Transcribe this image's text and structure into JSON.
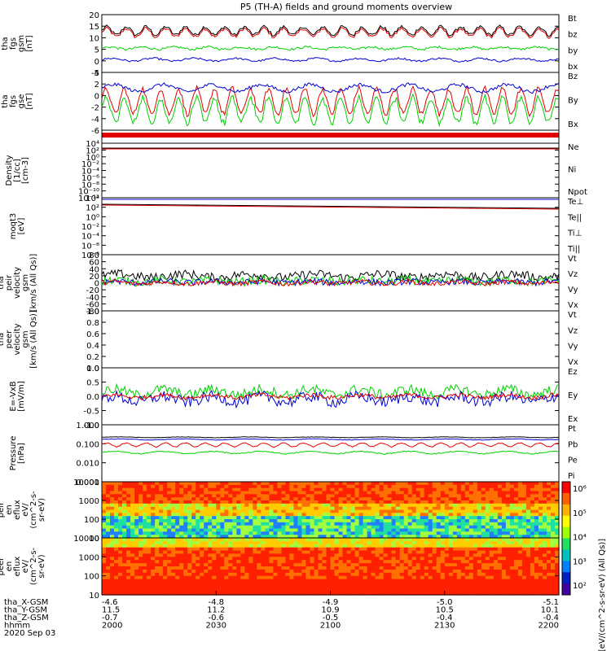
{
  "title": "P5 (TH-A) fields and ground moments overview",
  "colors": {
    "black": "#000000",
    "red": "#e00000",
    "green": "#00d000",
    "blue": "#0000d0"
  },
  "panels": [
    {
      "id": "fgs_gsm",
      "ylabel": [
        "tha",
        "fgs",
        "gsm",
        "[nT]"
      ],
      "ticks": [
        "20",
        "15",
        "10",
        "5",
        "0",
        "-5"
      ],
      "legend": [
        [
          "Bt",
          "black"
        ],
        [
          "bz",
          "red"
        ],
        [
          "by",
          "green"
        ],
        [
          "bx",
          "blue"
        ]
      ]
    },
    {
      "id": "fgs_gse",
      "ylabel": [
        "tha",
        "fgs",
        "gse",
        "[nT]"
      ],
      "ticks": [
        "4",
        "2",
        "0",
        "-2",
        "-4",
        "-6"
      ],
      "legend": [
        [
          "Bz",
          "red"
        ],
        [
          "By",
          "green"
        ],
        [
          "Bx",
          "blue"
        ]
      ]
    },
    {
      "id": "density",
      "ylabel": [
        "Density",
        "[1/cc]",
        "[cm-3]"
      ],
      "ticks": [
        "10⁴",
        "10²",
        "10⁰",
        "10⁻²",
        "10⁻⁴",
        "10⁻⁶",
        "10⁻⁸",
        "10⁻¹⁰",
        "10⁻¹²"
      ],
      "legend": [
        [
          "Ne",
          "red"
        ],
        [
          "Ni",
          "black"
        ],
        [
          "Npot",
          "blue"
        ]
      ]
    },
    {
      "id": "temp",
      "ylabel": [
        "moqt3",
        "[eV]"
      ],
      "ticks": [
        "10⁴",
        "10²",
        "10⁰",
        "10⁻²",
        "10⁻⁴",
        "10⁻⁶",
        "10⁻⁸"
      ],
      "legend": [
        [
          "Te⊥",
          "red"
        ],
        [
          "Te||",
          "black"
        ],
        [
          "Ti⊥",
          "blue"
        ],
        [
          "Ti||",
          "green"
        ]
      ]
    },
    {
      "id": "peir_vel",
      "ylabel": [
        "tha",
        "peir",
        "velocity",
        "gsm",
        "[km/s (All Qs)]"
      ],
      "ticks": [
        "80",
        "60",
        "40",
        "20",
        "0",
        "-20",
        "-40",
        "-60",
        "-80"
      ],
      "legend": [
        [
          "Vt",
          "black"
        ],
        [
          "Vz",
          "red"
        ],
        [
          "Vy",
          "green"
        ],
        [
          "Vx",
          "blue"
        ]
      ]
    },
    {
      "id": "peer_vel",
      "ylabel": [
        "tha",
        "peer",
        "velocity",
        "gsm",
        "[km/s (All Qs)]"
      ],
      "ticks": [
        "1.0",
        "0.8",
        "0.6",
        "0.4",
        "0.2",
        "0.0"
      ],
      "legend": [
        [
          "Vt",
          "black"
        ],
        [
          "Vz",
          "red"
        ],
        [
          "Vy",
          "green"
        ],
        [
          "Vx",
          "blue"
        ]
      ]
    },
    {
      "id": "efield",
      "ylabel": [
        "E=-VxB",
        "[mV/m]"
      ],
      "ticks": [
        "1.0",
        "0.5",
        "0.0",
        "-0.5",
        "-1.0"
      ],
      "legend": [
        [
          "Ez",
          "red"
        ],
        [
          "Ey",
          "green"
        ],
        [
          "Ex",
          "blue"
        ]
      ]
    },
    {
      "id": "pressure",
      "ylabel": [
        "Pressure",
        "[nPa]"
      ],
      "ticks": [
        "1.000",
        "0.100",
        "0.010",
        "0.001"
      ],
      "legend": [
        [
          "Pt",
          "black"
        ],
        [
          "Pb",
          "red"
        ],
        [
          "Pe",
          "green"
        ],
        [
          "Pi",
          "blue"
        ]
      ]
    },
    {
      "id": "peir_en",
      "ylabel": [
        "tha",
        "peir",
        "en",
        "eflux",
        "eV/",
        "(cm^2-s-",
        "sr-eV)"
      ],
      "ticks": [
        "10000",
        "1000",
        "100",
        "10"
      ],
      "legend": []
    },
    {
      "id": "peer_en",
      "ylabel": [
        "tha",
        "peer",
        "en",
        "eflux",
        "eV/",
        "(cm^2-s-",
        "sr-eV)"
      ],
      "ticks": [
        "10000",
        "1000",
        "100",
        "10"
      ],
      "legend": []
    }
  ],
  "colorbar": {
    "ticks": [
      "10⁶",
      "10⁵",
      "10⁴",
      "10³",
      "10²"
    ],
    "label": "[eV/(cm^2-s-sr-eV) (All Qs)]"
  },
  "xaxis": {
    "rows": [
      "tha_X-GSM",
      "tha_Y-GSM",
      "tha_Z-GSM",
      "hhmm",
      "2020 Sep 03"
    ],
    "cols": [
      [
        "-4.6",
        "11.5",
        "-0.7",
        "2000"
      ],
      [
        "-4.8",
        "11.2",
        "-0.6",
        "2030"
      ],
      [
        "-4.9",
        "10.9",
        "-0.5",
        "2100"
      ],
      [
        "-5.0",
        "10.5",
        "-0.4",
        "2130"
      ],
      [
        "-5.1",
        "10.1",
        "-0.4",
        "2200"
      ]
    ]
  }
}
